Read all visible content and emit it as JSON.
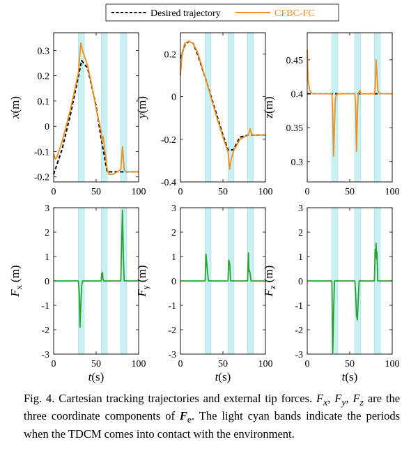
{
  "chart_data": {
    "type": "line",
    "legend": {
      "placement": "top-center",
      "entries": [
        {
          "name": "Desired trajectory",
          "color": "#000000",
          "style": "dashed"
        },
        {
          "name": "CFBC-FC",
          "color": "#f28e1e",
          "style": "solid"
        }
      ]
    },
    "contact_band_color": "#c9f1f3",
    "contact_periods_s": [
      [
        29,
        36
      ],
      [
        56,
        63
      ],
      [
        79,
        86
      ]
    ],
    "panels": [
      {
        "id": "x",
        "ylabel_var": "x",
        "ylabel_unit": "(m)",
        "xlim": [
          0,
          100
        ],
        "ylim": [
          -0.22,
          0.37
        ],
        "yticks": [
          0.3,
          0.2,
          0.1,
          0,
          -0.1,
          -0.2
        ],
        "ytick_labels": [
          "0.3",
          "0.2",
          "0.1",
          "0",
          "-0.1",
          "-0.2"
        ],
        "xticks": [
          0,
          50,
          100
        ],
        "xtick_labels": [
          "0",
          "50",
          "100"
        ],
        "xlabel": "",
        "series": [
          {
            "name": "Desired trajectory",
            "color": "#000000",
            "dashed": true,
            "x": [
              0,
              10,
              20,
              33,
              40,
              50,
              56,
              63,
              70,
              80,
              100
            ],
            "y": [
              -0.19,
              -0.09,
              0.05,
              0.26,
              0.23,
              0.08,
              -0.05,
              -0.18,
              -0.18,
              -0.18,
              -0.18
            ]
          },
          {
            "name": "CFBC-FC",
            "color": "#f28e1e",
            "dashed": false,
            "x": [
              0,
              2,
              4,
              10,
              20,
              29,
              32,
              34,
              36,
              40,
              45,
              50,
              56,
              57,
              58,
              59,
              63,
              65,
              70,
              75,
              79,
              81,
              83,
              85,
              90,
              100
            ],
            "y": [
              -0.11,
              -0.13,
              -0.12,
              -0.06,
              0.07,
              0.21,
              0.33,
              0.3,
              0.28,
              0.24,
              0.16,
              0.07,
              -0.02,
              -0.06,
              -0.04,
              -0.06,
              -0.17,
              -0.19,
              -0.19,
              -0.18,
              -0.17,
              -0.08,
              -0.17,
              -0.18,
              -0.18,
              -0.18
            ]
          }
        ]
      },
      {
        "id": "y",
        "ylabel_var": "y",
        "ylabel_unit": "(m)",
        "xlim": [
          0,
          100
        ],
        "ylim": [
          -0.4,
          0.3
        ],
        "yticks": [
          0.2,
          0,
          -0.2,
          -0.4
        ],
        "ytick_labels": [
          "0.2",
          "0",
          "-0.2",
          "-0.4"
        ],
        "xticks": [
          0,
          50,
          100
        ],
        "xtick_labels": [
          "0",
          "50",
          "100"
        ],
        "xlabel": "",
        "series": [
          {
            "name": "Desired trajectory",
            "color": "#000000",
            "dashed": true,
            "x": [
              0,
              5,
              10,
              15,
              20,
              30,
              40,
              50,
              56,
              62,
              70,
              80,
              100
            ],
            "y": [
              0.18,
              0.24,
              0.26,
              0.25,
              0.2,
              0.08,
              -0.05,
              -0.18,
              -0.25,
              -0.25,
              -0.19,
              -0.18,
              -0.18
            ]
          },
          {
            "name": "CFBC-FC",
            "color": "#f28e1e",
            "dashed": false,
            "x": [
              0,
              2,
              5,
              10,
              15,
              20,
              30,
              40,
              50,
              56,
              58,
              60,
              63,
              66,
              70,
              75,
              80,
              82,
              84,
              90,
              100
            ],
            "y": [
              0.1,
              0.2,
              0.25,
              0.26,
              0.25,
              0.21,
              0.08,
              -0.06,
              -0.19,
              -0.26,
              -0.34,
              -0.29,
              -0.25,
              -0.23,
              -0.2,
              -0.19,
              -0.18,
              -0.15,
              -0.18,
              -0.18,
              -0.18
            ]
          }
        ]
      },
      {
        "id": "z",
        "ylabel_var": "z",
        "ylabel_unit": "(m)",
        "xlim": [
          0,
          100
        ],
        "ylim": [
          0.27,
          0.49
        ],
        "yticks": [
          0.45,
          0.4,
          0.35,
          0.3
        ],
        "ytick_labels": [
          "0.45",
          "0.4",
          "0.35",
          "0.3"
        ],
        "xticks": [
          0,
          50,
          100
        ],
        "xtick_labels": [
          "0",
          "50",
          "100"
        ],
        "xlabel": "",
        "series": [
          {
            "name": "Desired trajectory",
            "color": "#000000",
            "dashed": true,
            "x": [
              0,
              100
            ],
            "y": [
              0.4,
              0.4
            ]
          },
          {
            "name": "CFBC-FC",
            "color": "#f28e1e",
            "dashed": false,
            "x": [
              0,
              1,
              3,
              6,
              10,
              29,
              30,
              31,
              32,
              33,
              34,
              36,
              56,
              57,
              58,
              59,
              60,
              62,
              63,
              79,
              80,
              81,
              82,
              83,
              85,
              88,
              100
            ],
            "y": [
              0.465,
              0.42,
              0.405,
              0.4,
              0.4,
              0.4,
              0.37,
              0.308,
              0.35,
              0.39,
              0.398,
              0.4,
              0.4,
              0.38,
              0.315,
              0.37,
              0.4,
              0.405,
              0.4,
              0.4,
              0.41,
              0.45,
              0.43,
              0.405,
              0.4,
              0.4,
              0.4
            ]
          }
        ]
      },
      {
        "id": "Fx",
        "ylabel_var": "F",
        "ylabel_sub": "x",
        "ylabel_unit": "(m)",
        "xlim": [
          0,
          100
        ],
        "ylim": [
          -3,
          3
        ],
        "yticks": [
          3,
          2,
          1,
          0,
          -1,
          -2,
          -3
        ],
        "ytick_labels": [
          "3",
          "2",
          "1",
          "0",
          "-1",
          "-2",
          "-3"
        ],
        "xticks": [
          0,
          50,
          100
        ],
        "xtick_labels": [
          "0",
          "50",
          "100"
        ],
        "xlabel": "t(s)",
        "series": [
          {
            "name": "Fx",
            "color": "#2ca02c",
            "dashed": false,
            "x": [
              0,
              29,
              30,
              31,
              32,
              33,
              34,
              56,
              56.5,
              57,
              57.5,
              58,
              59,
              79,
              80,
              81,
              82,
              83,
              100
            ],
            "y": [
              0,
              0,
              -0.4,
              -1.9,
              -0.9,
              -0.2,
              0,
              0,
              0.3,
              0.15,
              0.35,
              0.1,
              0,
              0,
              1.5,
              2.9,
              1.0,
              0,
              0
            ]
          }
        ]
      },
      {
        "id": "Fy",
        "ylabel_var": "F",
        "ylabel_sub": "y",
        "ylabel_unit": "(m)",
        "xlim": [
          0,
          100
        ],
        "ylim": [
          -3,
          3
        ],
        "yticks": [
          3,
          2,
          1,
          0,
          -1,
          -2,
          -3
        ],
        "ytick_labels": [
          "3",
          "2",
          "1",
          "0",
          "-1",
          "-2",
          "-3"
        ],
        "xticks": [
          0,
          50,
          100
        ],
        "xtick_labels": [
          "0",
          "50",
          "100"
        ],
        "xlabel": "t(s)",
        "series": [
          {
            "name": "Fy",
            "color": "#2ca02c",
            "dashed": false,
            "x": [
              0,
              29,
              29.5,
              30,
              31,
              32,
              33,
              56,
              56.5,
              57,
              58,
              59,
              79,
              79.5,
              80,
              80.5,
              81,
              82,
              83,
              100
            ],
            "y": [
              0,
              0,
              0.5,
              1.1,
              0.7,
              0.3,
              0,
              0,
              0.6,
              0.85,
              0.7,
              0,
              0,
              0.6,
              1.15,
              0.4,
              0.45,
              0.3,
              0,
              0
            ]
          }
        ]
      },
      {
        "id": "Fz",
        "ylabel_var": "F",
        "ylabel_sub": "z",
        "ylabel_unit": "(m)",
        "xlim": [
          0,
          100
        ],
        "ylim": [
          -3,
          3
        ],
        "yticks": [
          3,
          2,
          1,
          0,
          -1,
          -2,
          -3
        ],
        "ytick_labels": [
          "3",
          "2",
          "1",
          "0",
          "-1",
          "-2",
          "-3"
        ],
        "xticks": [
          0,
          50,
          100
        ],
        "xtick_labels": [
          "0",
          "50",
          "100"
        ],
        "xlabel": "t(s)",
        "series": [
          {
            "name": "Fz",
            "color": "#2ca02c",
            "dashed": false,
            "x": [
              0,
              29,
              29.5,
              30,
              30.5,
              31,
              32,
              56,
              57,
              58,
              59,
              60,
              61,
              79,
              80,
              80.5,
              81,
              81.5,
              82,
              83,
              100
            ],
            "y": [
              0,
              0,
              -1.5,
              -2.95,
              -2.3,
              -1.3,
              0,
              0,
              -0.5,
              -1.4,
              -1.6,
              -0.8,
              0,
              0,
              1.3,
              1.0,
              1.55,
              0.9,
              1.2,
              0,
              0
            ]
          }
        ]
      }
    ]
  },
  "caption": {
    "prefix": "Fig. 4. Cartesian tracking trajectories and external tip forces. ",
    "vars": [
      "F",
      "F",
      "F"
    ],
    "subs": [
      "x",
      "y",
      "z"
    ],
    "mid": " are the three coordinate components of ",
    "bold_var": "F",
    "bold_sub": "e",
    "suffix": ". The light cyan bands indicate the periods when the TDCM comes into contact with the environment."
  }
}
